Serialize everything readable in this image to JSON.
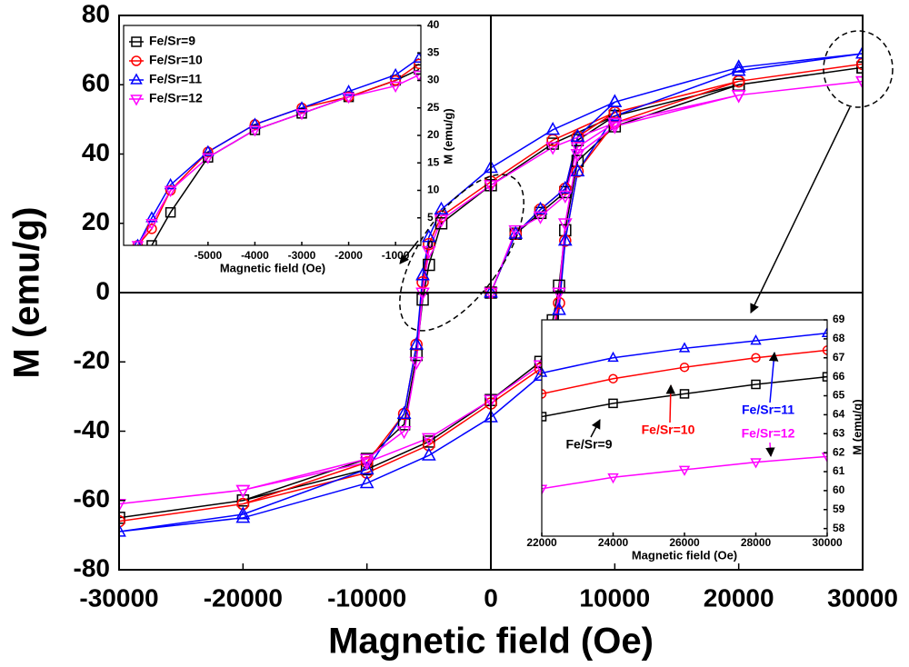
{
  "chart_data": [
    {
      "type": "line",
      "xlabel": "Magnetic field (Oe)",
      "ylabel": "M (emu/g)",
      "x": [
        0,
        2000,
        4000,
        6000,
        7000,
        10000,
        20000,
        30000,
        20000,
        10000,
        5000,
        0,
        -4000,
        -5000,
        -5500,
        -6000,
        -7000,
        -10000,
        -20000,
        -30000,
        -20000,
        -10000,
        -5000,
        0,
        4000,
        5000,
        5500,
        6000,
        7000,
        10000,
        20000,
        30000
      ],
      "series": [
        {
          "color": "#000000",
          "marker": "square",
          "values": [
            0,
            17,
            23,
            29,
            44,
            51,
            60,
            65,
            60,
            51,
            43,
            31,
            20,
            8,
            -2,
            -18,
            -38,
            -48,
            -60,
            -65,
            -60,
            -51,
            -43,
            -31,
            -20,
            -8,
            2,
            18,
            38,
            48,
            60,
            65
          ]
        },
        {
          "color": "#ff0000",
          "marker": "circle",
          "values": [
            0,
            17,
            24,
            30,
            45,
            52,
            61,
            66,
            61,
            52,
            44,
            32,
            22,
            14,
            3,
            -15,
            -35,
            -49,
            -61,
            -66,
            -61,
            -52,
            -44,
            -32,
            -22,
            -14,
            -3,
            15,
            35,
            49,
            61,
            66
          ]
        },
        {
          "color": "#0000ff",
          "marker": "triangle-up",
          "values": [
            0,
            17,
            24,
            30,
            45,
            55,
            65,
            69,
            65,
            55,
            47,
            36,
            24,
            16,
            5,
            -15,
            -35,
            -51,
            -64,
            -69,
            -65,
            -55,
            -47,
            -36,
            -24,
            -16,
            -5,
            15,
            35,
            51,
            64,
            69
          ]
        },
        {
          "color": "#ff00ff",
          "marker": "triangle-down",
          "values": [
            0,
            18,
            22,
            28,
            42,
            49,
            57,
            61,
            57,
            49,
            42,
            31,
            21,
            12,
            0,
            -20,
            -40,
            -48,
            -57,
            -61,
            -57,
            -49,
            -42,
            -31,
            -21,
            -12,
            0,
            20,
            40,
            48,
            57,
            61
          ]
        }
      ],
      "xlim": [
        -30000,
        30000
      ],
      "xticks": [
        -30000,
        -20000,
        -10000,
        0,
        10000,
        20000,
        30000
      ],
      "ylim": [
        -80,
        80
      ],
      "yticks": [
        -80,
        -60,
        -40,
        -20,
        0,
        20,
        40,
        60,
        80
      ]
    },
    {
      "type": "line",
      "xlabel": "Magnetic field (Oe)",
      "ylabel": "M (emu/g)",
      "legend": "upper left",
      "x": [
        -6500,
        -6200,
        -5800,
        -5000,
        -4000,
        -3000,
        -2000,
        -1000,
        -500
      ],
      "series": [
        {
          "name": "Fe/Sr=9",
          "color": "#000000",
          "marker": "square",
          "values": [
            null,
            0,
            6,
            16,
            21,
            24,
            27,
            30,
            32
          ]
        },
        {
          "name": "Fe/Sr=10",
          "color": "#ff0000",
          "marker": "circle",
          "values": [
            0,
            3,
            10,
            17,
            22,
            25,
            27,
            30,
            33
          ]
        },
        {
          "name": "Fe/Sr=11",
          "color": "#0000ff",
          "marker": "triangle-up",
          "values": [
            0,
            5,
            11,
            17,
            22,
            25,
            28,
            31,
            34
          ]
        },
        {
          "name": "Fe/Sr=12",
          "color": "#ff00ff",
          "marker": "triangle-down",
          "values": [
            0,
            4,
            10,
            16,
            21,
            24,
            27,
            29,
            31
          ]
        }
      ],
      "xlim": [
        -6800,
        -460
      ],
      "xticks": [
        -5000,
        -4000,
        -3000,
        -2000,
        -1000
      ],
      "ylim": [
        0,
        40
      ],
      "yticks": [
        0,
        5,
        10,
        15,
        20,
        25,
        30,
        35,
        40
      ]
    },
    {
      "type": "line",
      "xlabel": "Magnetic field (Oe)",
      "ylabel": "M (emu/g)",
      "x": [
        22000,
        24000,
        26000,
        28000,
        30000
      ],
      "series": [
        {
          "name": "Fe/Sr=9",
          "color": "#000000",
          "marker": "square",
          "values": [
            63.9,
            64.6,
            65.1,
            65.6,
            66.0
          ]
        },
        {
          "name": "Fe/Sr=10",
          "color": "#ff0000",
          "marker": "circle",
          "values": [
            65.1,
            65.9,
            66.5,
            67.0,
            67.4
          ]
        },
        {
          "name": "Fe/Sr=11",
          "color": "#0000ff",
          "marker": "triangle-up",
          "values": [
            66.2,
            67.0,
            67.5,
            67.9,
            68.3
          ]
        },
        {
          "name": "Fe/Sr=12",
          "color": "#ff00ff",
          "marker": "triangle-down",
          "values": [
            60.1,
            60.7,
            61.1,
            61.5,
            61.8
          ]
        }
      ],
      "xlim": [
        22000,
        30000
      ],
      "xticks": [
        22000,
        24000,
        26000,
        28000,
        30000
      ],
      "ylim": [
        57.6,
        69
      ],
      "yticks": [
        58,
        59,
        60,
        61,
        62,
        63,
        64,
        65,
        66,
        67,
        68,
        69
      ]
    }
  ]
}
